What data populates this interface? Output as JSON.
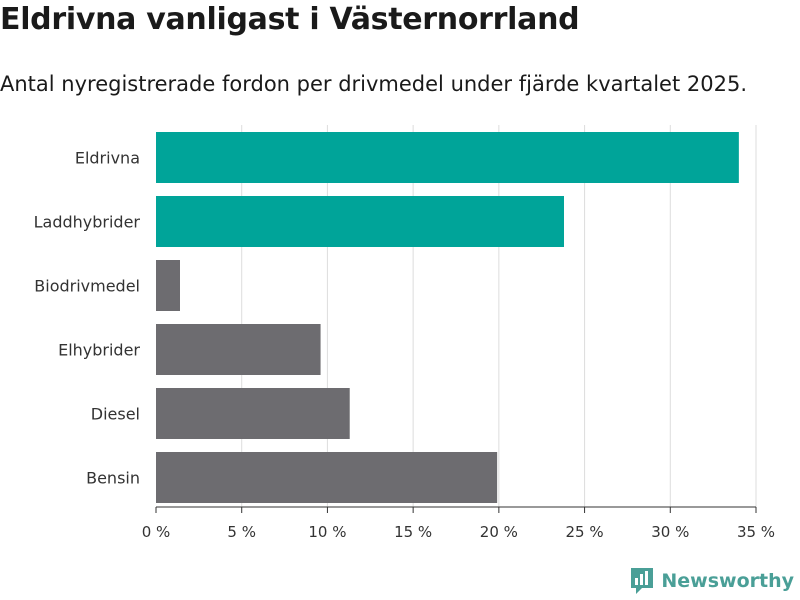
{
  "colors": {
    "electric": "#00a499",
    "other": "#6d6c70",
    "grid": "#dddddd",
    "axis": "#333333",
    "brand": "#4a9f97"
  },
  "brand": {
    "name": "Newsworthy"
  },
  "chart_data": {
    "type": "bar",
    "orientation": "horizontal",
    "title": "Eldrivna vanligast i Västernorrland",
    "subtitle": "Antal nyregistrerade fordon per drivmedel under fjärde kvartalet 2025.",
    "categories": [
      "Eldrivna",
      "Laddhybrider",
      "Biodrivmedel",
      "Elhybrider",
      "Diesel",
      "Bensin"
    ],
    "values": [
      34,
      23.8,
      1.4,
      9.6,
      11.3,
      19.9
    ],
    "highlighted": [
      true,
      true,
      false,
      false,
      false,
      false
    ],
    "xlim": [
      0,
      35
    ],
    "xticks": [
      0,
      5,
      10,
      15,
      20,
      25,
      30,
      35
    ],
    "xtick_labels": [
      "0 %",
      "5 %",
      "10 %",
      "15 %",
      "20 %",
      "25 %",
      "30 %",
      "35 %"
    ],
    "xlabel": "",
    "ylabel": "",
    "grid": true,
    "legend": "none"
  }
}
